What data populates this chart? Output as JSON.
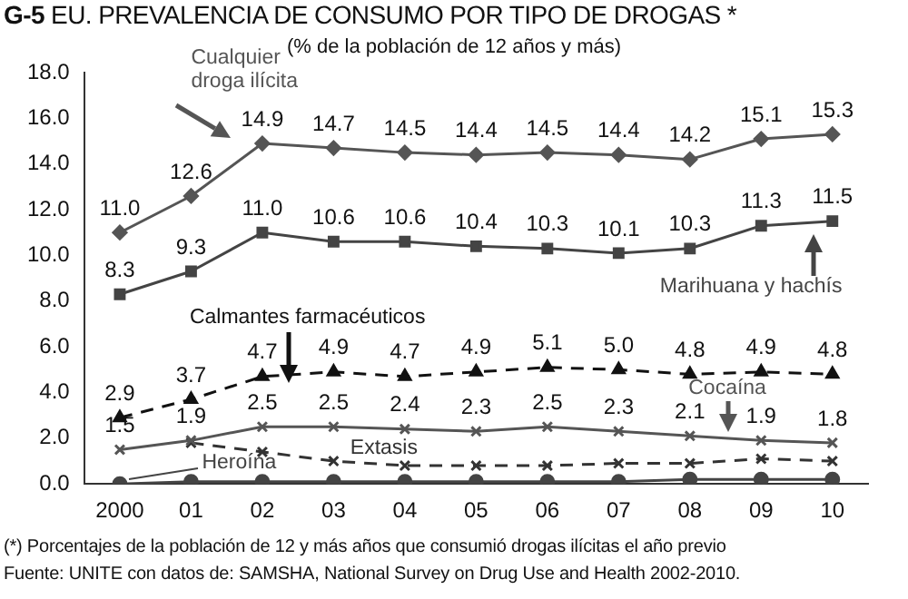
{
  "chart_data": {
    "type": "line",
    "title": "G-5 EU. PREVALENCIA DE CONSUMO POR TIPO DE DROGAS *",
    "subtitle": "(% de la población de 12 años y más)",
    "categories": [
      "2000",
      "01",
      "02",
      "03",
      "04",
      "05",
      "06",
      "07",
      "08",
      "09",
      "10"
    ],
    "ylim": [
      0,
      18
    ],
    "yticks": [
      {
        "value": 0,
        "label": "0.0"
      },
      {
        "value": 2,
        "label": "2.0"
      },
      {
        "value": 4,
        "label": "4.0"
      },
      {
        "value": 6,
        "label": "6.0"
      },
      {
        "value": 8,
        "label": "8.0"
      },
      {
        "value": 10,
        "label": "10.0"
      },
      {
        "value": 12,
        "label": "12.0"
      },
      {
        "value": 14,
        "label": "14.0"
      },
      {
        "value": 16,
        "label": "16.0"
      },
      {
        "value": 18,
        "label": "18.0"
      }
    ],
    "grid": false,
    "series": [
      {
        "name": "Cualquier droga ilícita",
        "color": "#555555",
        "marker": "diamond",
        "line_style": "solid",
        "values": [
          11.0,
          12.6,
          14.9,
          14.7,
          14.5,
          14.4,
          14.5,
          14.4,
          14.2,
          15.1,
          15.3
        ],
        "value_labels": [
          "11.0",
          "12.6",
          "14.9",
          "14.7",
          "14.5",
          "14.4",
          "14.5",
          "14.4",
          "14.2",
          "15.1",
          "15.3"
        ]
      },
      {
        "name": "Marihuana y hachís",
        "color": "#444444",
        "marker": "square",
        "line_style": "solid",
        "values": [
          8.3,
          9.3,
          11.0,
          10.6,
          10.6,
          10.4,
          10.3,
          10.1,
          10.3,
          11.3,
          11.5
        ],
        "value_labels": [
          "8.3",
          "9.3",
          "11.0",
          "10.6",
          "10.6",
          "10.4",
          "10.3",
          "10.1",
          "10.3",
          "11.3",
          "11.5"
        ]
      },
      {
        "name": "Calmantes farmacéuticos",
        "color": "#111111",
        "marker": "triangle",
        "line_style": "dashed",
        "values": [
          2.9,
          3.7,
          4.7,
          4.9,
          4.7,
          4.9,
          5.1,
          5.0,
          4.8,
          4.9,
          4.8
        ],
        "value_labels": [
          "2.9",
          "3.7",
          "4.7",
          "4.9",
          "4.7",
          "4.9",
          "5.1",
          "5.0",
          "4.8",
          "4.9",
          "4.8"
        ]
      },
      {
        "name": "Cocaína",
        "color": "#555555",
        "marker": "cross",
        "line_style": "solid",
        "values": [
          1.5,
          1.9,
          2.5,
          2.5,
          2.4,
          2.3,
          2.5,
          2.3,
          2.1,
          1.9,
          1.8
        ],
        "value_labels": [
          "1.5",
          "1.9",
          "2.5",
          "2.5",
          "2.4",
          "2.3",
          "2.5",
          "2.3",
          "2.1",
          "1.9",
          "1.8"
        ]
      },
      {
        "name": "Extasis",
        "color": "#333333",
        "marker": "cross",
        "line_style": "dashed",
        "values": [
          null,
          1.8,
          1.4,
          1.0,
          0.8,
          0.8,
          0.8,
          0.9,
          0.9,
          1.1,
          1.0
        ]
      },
      {
        "name": "Heroína",
        "color": "#444444",
        "marker": "circle",
        "line_style": "solid",
        "values": [
          0.0,
          0.1,
          0.1,
          0.1,
          0.1,
          0.1,
          0.1,
          0.1,
          0.2,
          0.2,
          0.2
        ]
      }
    ],
    "annotations": [
      "(*) Porcentajes de la población de 12 y más  años que consumió drogas ilícitas el año previo",
      "Fuente:  UNITE con datos de: SAMSHA, National Survey on Drug Use and Health 2002-2010."
    ]
  }
}
